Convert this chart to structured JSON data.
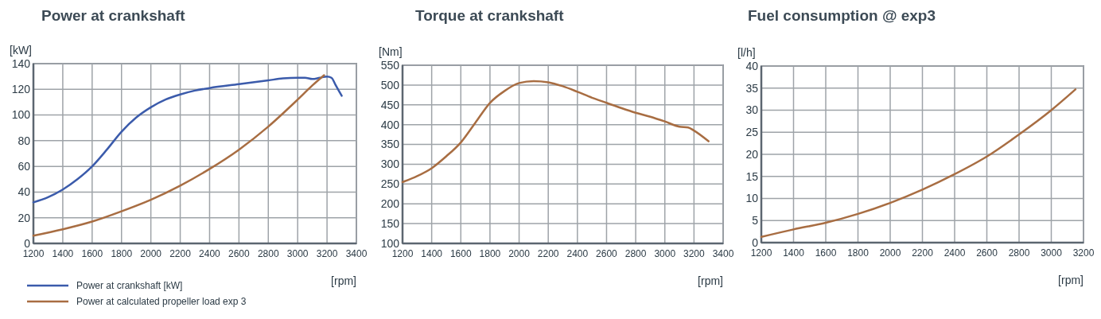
{
  "chart_data": [
    {
      "type": "line",
      "title": "Power at crankshaft",
      "xlabel": "[rpm]",
      "ylabel": "[kW]",
      "xlim": [
        1200,
        3400
      ],
      "xticks": [
        1200,
        1400,
        1600,
        1800,
        2000,
        2200,
        2400,
        2600,
        2800,
        3000,
        3200,
        3400
      ],
      "ylim": [
        0,
        140
      ],
      "yticks": [
        0,
        20,
        40,
        60,
        80,
        100,
        120,
        140
      ],
      "grid": true,
      "legend": "bottom left",
      "line_style": "solid",
      "marker": "none",
      "series": [
        {
          "name": "Power at crankshaft [kW]",
          "color": "#3b5bab",
          "x": [
            1200,
            1300,
            1400,
            1500,
            1600,
            1700,
            1800,
            1900,
            2000,
            2100,
            2200,
            2300,
            2400,
            2600,
            2800,
            2900,
            3000,
            3050,
            3100,
            3150,
            3200,
            3230,
            3260,
            3300
          ],
          "values": [
            32,
            36,
            42,
            50,
            60,
            73,
            87,
            98,
            106,
            112,
            116,
            119,
            121,
            124,
            127,
            128.5,
            129,
            129,
            128,
            129,
            130,
            129,
            123,
            115
          ]
        },
        {
          "name": "Power at calculated propeller load exp 3",
          "color": "#a86d42",
          "x": [
            1200,
            1400,
            1600,
            1800,
            2000,
            2200,
            2400,
            2600,
            2800,
            3000,
            3100,
            3180
          ],
          "values": [
            6,
            11,
            17,
            25,
            34,
            45,
            58,
            73,
            91,
            112,
            123,
            131
          ]
        }
      ]
    },
    {
      "type": "line",
      "title": "Torque at crankshaft",
      "xlabel": "[rpm]",
      "ylabel": "[Nm]",
      "xlim": [
        1200,
        3400
      ],
      "xticks": [
        1200,
        1400,
        1600,
        1800,
        2000,
        2200,
        2400,
        2600,
        2800,
        3000,
        3200,
        3400
      ],
      "ylim": [
        100,
        550
      ],
      "yticks": [
        100,
        150,
        200,
        250,
        300,
        350,
        400,
        450,
        500,
        550
      ],
      "grid": true,
      "line_style": "solid",
      "marker": "none",
      "series": [
        {
          "color": "#a86d42",
          "x": [
            1200,
            1300,
            1400,
            1500,
            1600,
            1700,
            1800,
            1900,
            2000,
            2100,
            2200,
            2300,
            2400,
            2500,
            2600,
            2700,
            2800,
            2900,
            3000,
            3100,
            3160,
            3200,
            3300
          ],
          "values": [
            255,
            270,
            290,
            320,
            355,
            405,
            455,
            485,
            505,
            510,
            507,
            497,
            483,
            468,
            455,
            442,
            430,
            420,
            408,
            395,
            393,
            385,
            358
          ]
        }
      ]
    },
    {
      "type": "line",
      "title": "Fuel consumption @ exp3",
      "xlabel": "[rpm]",
      "ylabel": "[l/h]",
      "xlim": [
        1200,
        3200
      ],
      "xticks": [
        1200,
        1400,
        1600,
        1800,
        2000,
        2200,
        2400,
        2600,
        2800,
        3000,
        3200
      ],
      "ylim": [
        0,
        40
      ],
      "yticks": [
        0,
        5,
        10,
        15,
        20,
        25,
        30,
        35,
        40
      ],
      "grid": true,
      "line_style": "solid",
      "marker": "none",
      "series": [
        {
          "color": "#a86d42",
          "x": [
            1200,
            1400,
            1600,
            1800,
            2000,
            2200,
            2400,
            2600,
            2800,
            3000,
            3150
          ],
          "values": [
            1.3,
            3,
            4.5,
            6.5,
            9,
            12,
            15.5,
            19.5,
            24.5,
            30,
            34.7
          ]
        }
      ]
    }
  ]
}
